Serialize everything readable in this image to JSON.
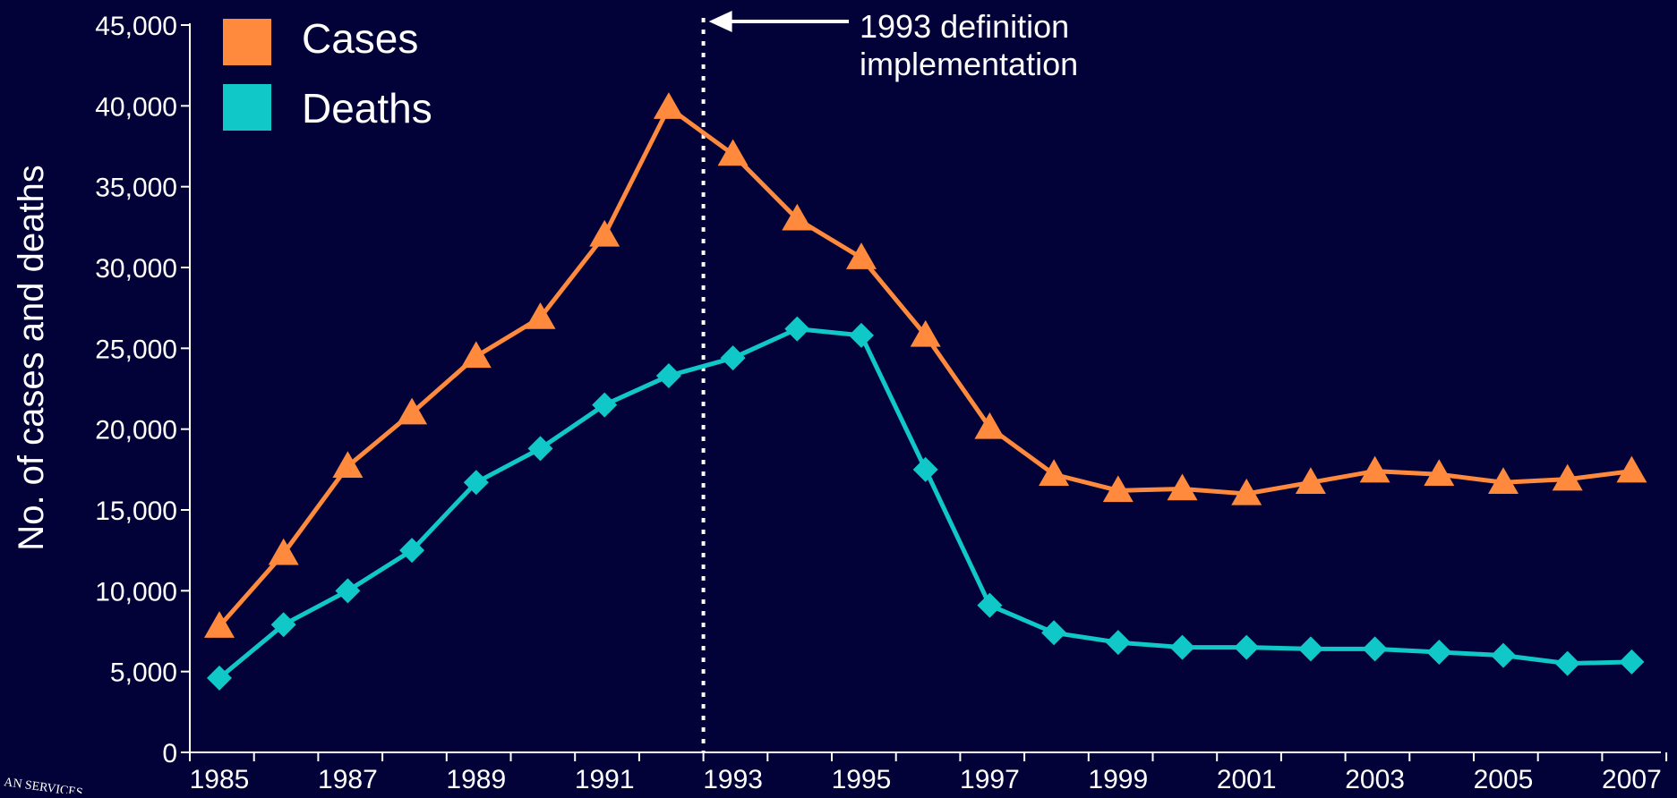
{
  "chart_data": {
    "type": "line",
    "x": [
      1985,
      1986,
      1987,
      1988,
      1989,
      1990,
      1991,
      1992,
      1993,
      1994,
      1995,
      1996,
      1997,
      1998,
      1999,
      2000,
      2001,
      2002,
      2003,
      2004,
      2005,
      2006,
      2007
    ],
    "x_tick_labels": [
      "1985",
      "1987",
      "1989",
      "1991",
      "1993",
      "1995",
      "1997",
      "1999",
      "2001",
      "2003",
      "2005",
      "2007"
    ],
    "series": [
      {
        "name": "Cases",
        "color": "#ff8a3d",
        "marker": "triangle",
        "values": [
          7800,
          12300,
          17700,
          21000,
          24500,
          26900,
          32000,
          39900,
          37000,
          33000,
          30600,
          25800,
          20100,
          17200,
          16200,
          16300,
          16000,
          16700,
          17400,
          17200,
          16700,
          16900,
          17400
        ]
      },
      {
        "name": "Deaths",
        "color": "#10c8c8",
        "marker": "diamond",
        "values": [
          4600,
          7900,
          10000,
          12500,
          16700,
          18800,
          21500,
          23300,
          24400,
          26200,
          25800,
          17500,
          9100,
          7400,
          6800,
          6500,
          6500,
          6400,
          6400,
          6200,
          6000,
          5500,
          5600
        ]
      }
    ],
    "ylabel": "No. of cases and deaths",
    "xlabel": "",
    "ylim": [
      0,
      45000
    ],
    "y_ticks": [
      0,
      5000,
      10000,
      15000,
      20000,
      25000,
      30000,
      35000,
      40000,
      45000
    ],
    "y_tick_labels": [
      "0",
      "5,000",
      "10,000",
      "15,000",
      "20,000",
      "25,000",
      "30,000",
      "35,000",
      "40,000",
      "45,000"
    ],
    "annotation": {
      "line1": "1993 definition",
      "line2": "implementation",
      "x_value": 1993
    },
    "legend_position": "top-left",
    "grid": false
  },
  "seal_text": "AN SERVICES"
}
